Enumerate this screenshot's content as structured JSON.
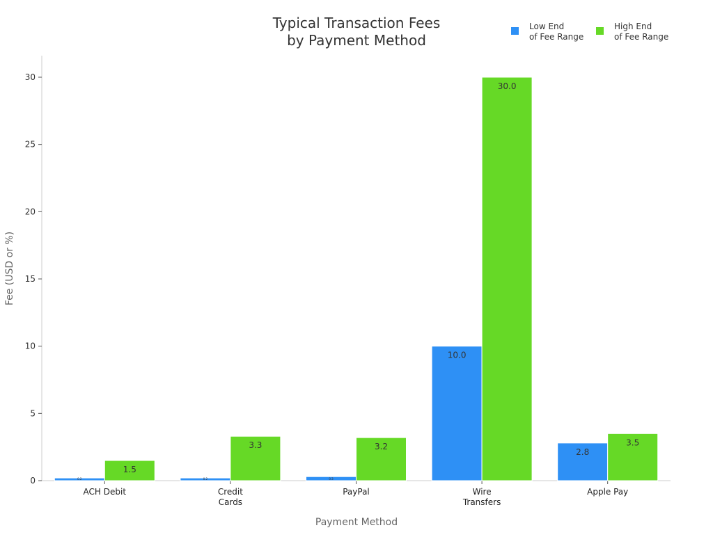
{
  "chart_data": {
    "type": "bar",
    "title": "Typical Transaction Fees\nby Payment Method",
    "xlabel": "Payment Method",
    "ylabel": "Fee (USD or %)",
    "categories": [
      "ACH Debit",
      "Credit\nCards",
      "PayPal",
      "Wire\nTransfers",
      "Apple Pay"
    ],
    "series": [
      {
        "name": "Low End\nof Fee Range",
        "color": "#2E90F5",
        "values": [
          0.2,
          0.2,
          0.3,
          10.0,
          2.8
        ]
      },
      {
        "name": "High End\nof Fee Range",
        "color": "#66D926",
        "values": [
          1.5,
          3.3,
          3.2,
          30.0,
          3.5
        ]
      }
    ],
    "ylim": [
      0,
      31.5
    ],
    "yticks": [
      0,
      5,
      10,
      15,
      20,
      25,
      30
    ],
    "grid": false,
    "legend": "top-right",
    "data_labels": true
  }
}
